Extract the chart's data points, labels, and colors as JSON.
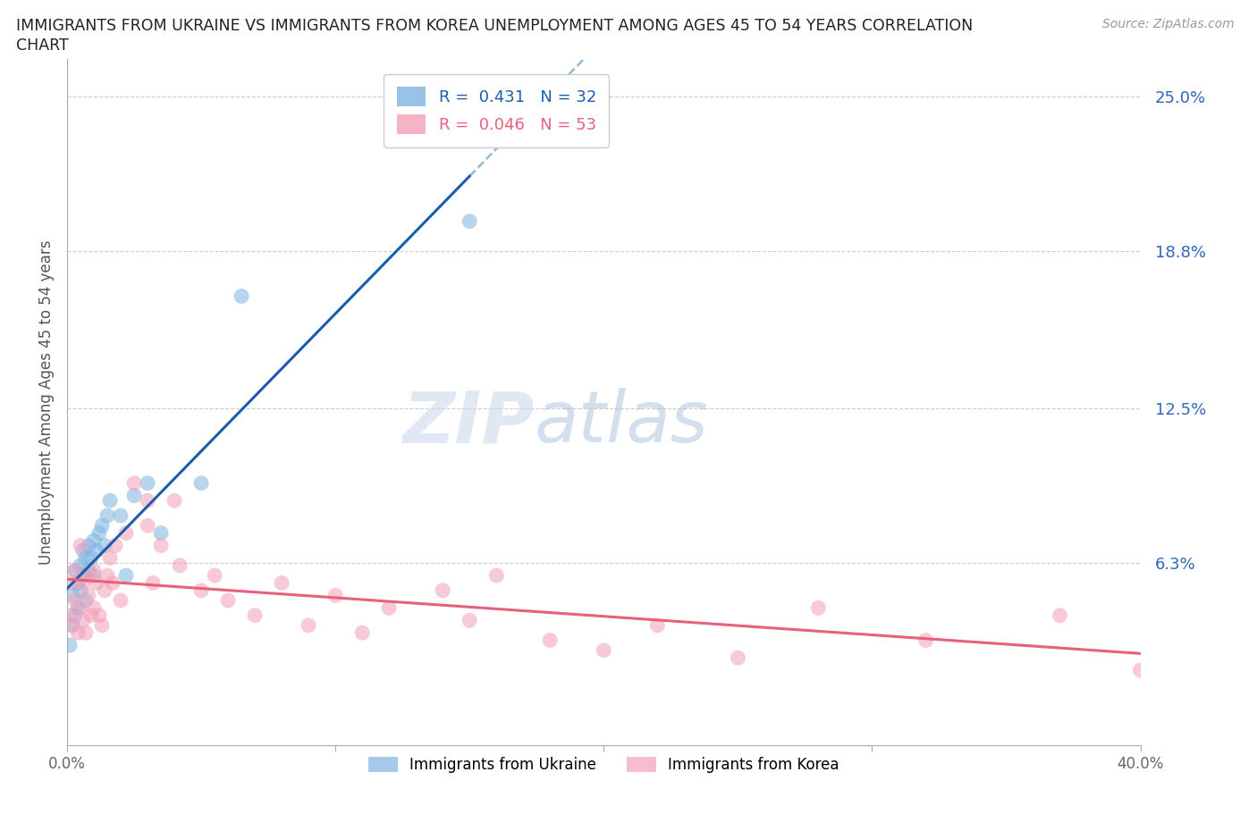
{
  "title_line1": "IMMIGRANTS FROM UKRAINE VS IMMIGRANTS FROM KOREA UNEMPLOYMENT AMONG AGES 45 TO 54 YEARS CORRELATION",
  "title_line2": "CHART",
  "source": "Source: ZipAtlas.com",
  "ylabel": "Unemployment Among Ages 45 to 54 years",
  "right_ytick_labels": [
    "25.0%",
    "18.8%",
    "12.5%",
    "6.3%"
  ],
  "right_ytick_values": [
    0.25,
    0.188,
    0.125,
    0.063
  ],
  "legend_ukraine": "R =  0.431   N = 32",
  "legend_korea": "R =  0.046   N = 53",
  "legend_label_ukraine": "Immigrants from Ukraine",
  "legend_label_korea": "Immigrants from Korea",
  "ukraine_color": "#7EB3E0",
  "korea_color": "#F4A0B8",
  "ukraine_line_color": "#1A5DAD",
  "korea_line_color": "#E8607A",
  "dashed_line_color": "#90B8D8",
  "background_color": "#FFFFFF",
  "ukraine_x": [
    0.001,
    0.002,
    0.002,
    0.003,
    0.003,
    0.004,
    0.004,
    0.005,
    0.005,
    0.006,
    0.006,
    0.007,
    0.007,
    0.008,
    0.008,
    0.009,
    0.01,
    0.01,
    0.011,
    0.012,
    0.013,
    0.014,
    0.015,
    0.016,
    0.02,
    0.022,
    0.025,
    0.03,
    0.035,
    0.05,
    0.065,
    0.15
  ],
  "ukraine_y": [
    0.03,
    0.038,
    0.05,
    0.042,
    0.06,
    0.045,
    0.055,
    0.052,
    0.062,
    0.058,
    0.068,
    0.065,
    0.048,
    0.06,
    0.07,
    0.065,
    0.072,
    0.058,
    0.068,
    0.075,
    0.078,
    0.07,
    0.082,
    0.088,
    0.082,
    0.058,
    0.09,
    0.095,
    0.075,
    0.095,
    0.17,
    0.2
  ],
  "korea_x": [
    0.001,
    0.002,
    0.002,
    0.003,
    0.003,
    0.004,
    0.005,
    0.005,
    0.006,
    0.006,
    0.007,
    0.008,
    0.008,
    0.009,
    0.01,
    0.01,
    0.011,
    0.012,
    0.013,
    0.014,
    0.015,
    0.016,
    0.017,
    0.018,
    0.02,
    0.022,
    0.025,
    0.03,
    0.03,
    0.032,
    0.035,
    0.04,
    0.042,
    0.05,
    0.055,
    0.06,
    0.07,
    0.08,
    0.09,
    0.1,
    0.11,
    0.12,
    0.14,
    0.15,
    0.16,
    0.18,
    0.2,
    0.22,
    0.25,
    0.28,
    0.32,
    0.37,
    0.4
  ],
  "korea_y": [
    0.042,
    0.038,
    0.055,
    0.048,
    0.06,
    0.035,
    0.045,
    0.07,
    0.04,
    0.055,
    0.035,
    0.05,
    0.058,
    0.042,
    0.06,
    0.045,
    0.055,
    0.042,
    0.038,
    0.052,
    0.058,
    0.065,
    0.055,
    0.07,
    0.048,
    0.075,
    0.095,
    0.078,
    0.088,
    0.055,
    0.07,
    0.088,
    0.062,
    0.052,
    0.058,
    0.048,
    0.042,
    0.055,
    0.038,
    0.05,
    0.035,
    0.045,
    0.052,
    0.04,
    0.058,
    0.032,
    0.028,
    0.038,
    0.025,
    0.045,
    0.032,
    0.042,
    0.02
  ],
  "xlim": [
    0.0,
    0.4
  ],
  "ylim": [
    -0.01,
    0.265
  ],
  "xtick_positions": [
    0.0,
    0.1,
    0.2,
    0.3,
    0.4
  ],
  "xtick_labels_show": [
    "0.0%",
    "",
    "",
    "",
    "40.0%"
  ]
}
